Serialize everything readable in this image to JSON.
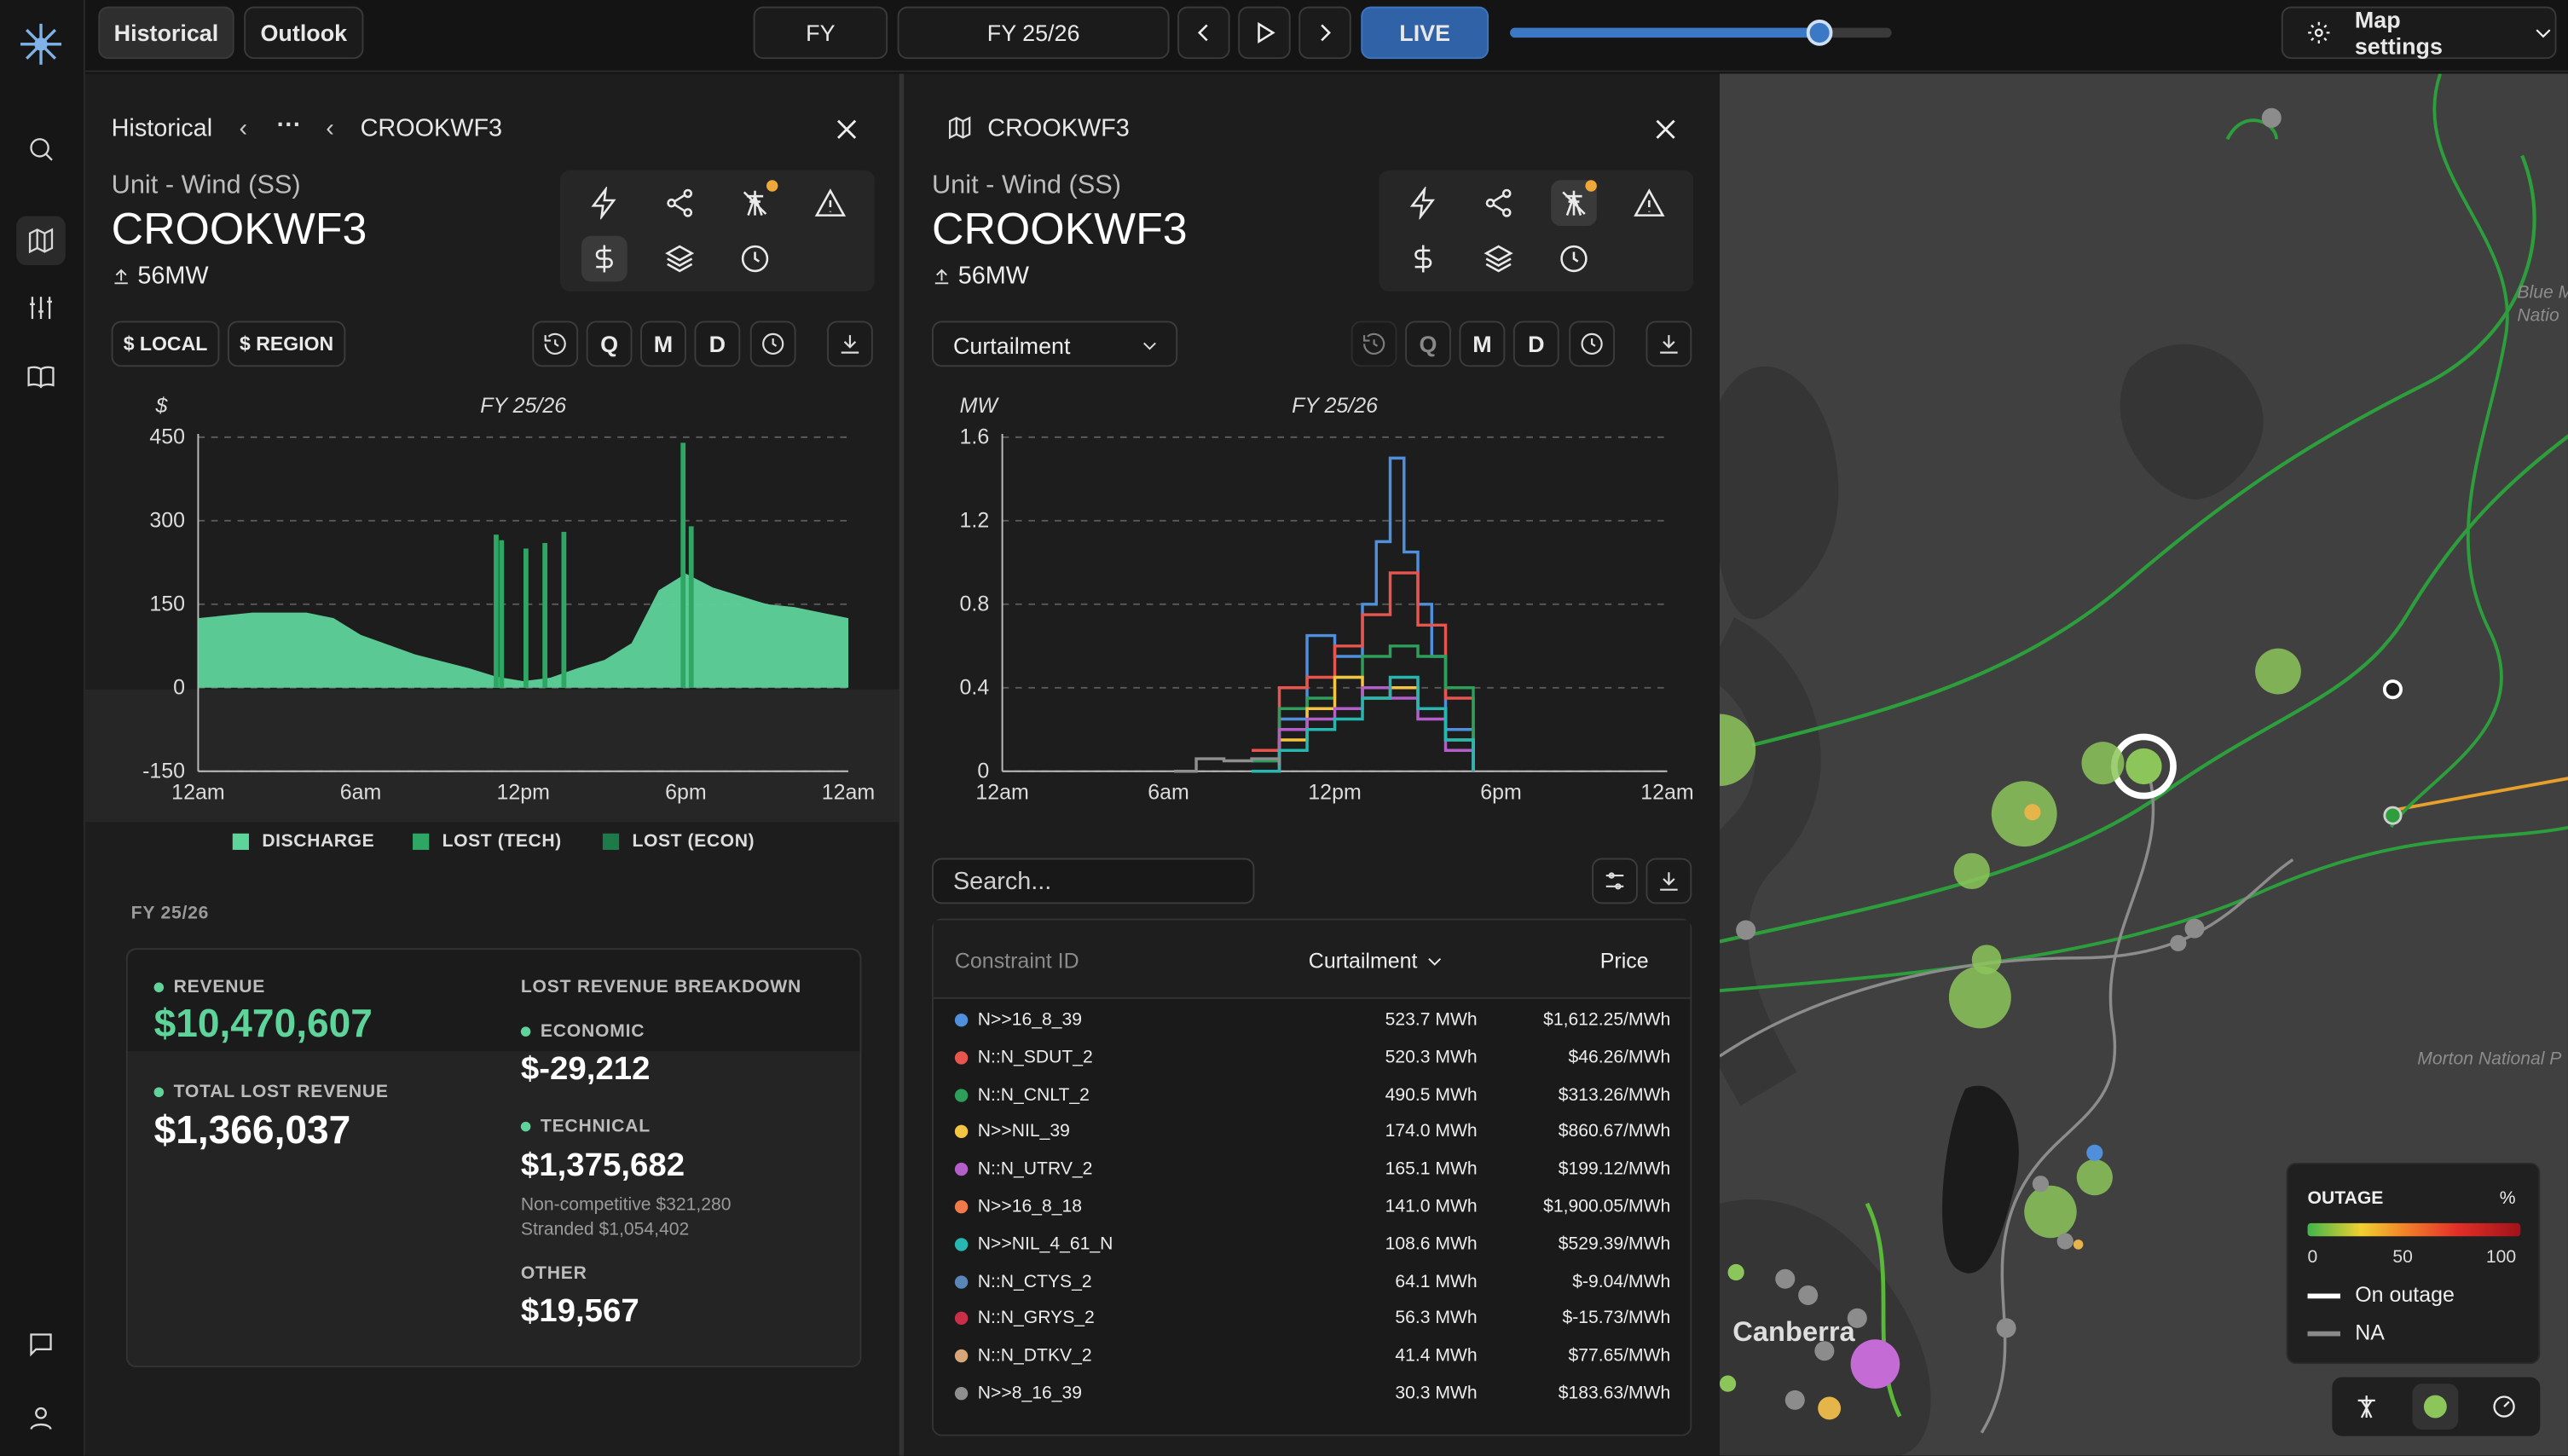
{
  "topbar": {
    "tabs": [
      "Historical",
      "Outlook"
    ],
    "period_type": "FY",
    "period_value": "FY 25/26",
    "live_label": "LIVE",
    "timeline_position": 0.81,
    "map_settings_label": "Map settings"
  },
  "left_panel": {
    "breadcrumb_root": "Historical",
    "breadcrumb_ellipsis": "···",
    "breadcrumb_current": "CROOKWF3",
    "unit_type": "Unit - Wind (SS)",
    "unit_name": "CROOKWF3",
    "capacity": "56MW",
    "btn_local": "$ LOCAL",
    "btn_region": "$ REGION",
    "btn_q": "Q",
    "btn_m": "M",
    "btn_d": "D",
    "chart_title": "FY 25/26",
    "chart_unit": "$",
    "legend": [
      "DISCHARGE",
      "LOST (TECH)",
      "LOST (ECON)"
    ],
    "summary_period": "FY 25/26",
    "revenue_label": "REVENUE",
    "revenue_value": "$10,470,607",
    "total_lost_label": "TOTAL LOST REVENUE",
    "total_lost_value": "$1,366,037",
    "breakdown_label": "LOST REVENUE BREAKDOWN",
    "economic_label": "ECONOMIC",
    "economic_value": "$-29,212",
    "technical_label": "TECHNICAL",
    "technical_value": "$1,375,682",
    "noncompetitive": "Non-competitive $321,280",
    "stranded": "Stranded $1,054,402",
    "other_label": "OTHER",
    "other_value": "$19,567"
  },
  "right_panel": {
    "title": "CROOKWF3",
    "unit_type": "Unit - Wind (SS)",
    "unit_name": "CROOKWF3",
    "capacity": "56MW",
    "dropdown_value": "Curtailment",
    "btn_q": "Q",
    "btn_m": "M",
    "btn_d": "D",
    "chart_title": "FY 25/26",
    "chart_unit": "MW",
    "search_placeholder": "Search...",
    "table_headers": [
      "Constraint ID",
      "Curtailment",
      "Price"
    ],
    "rows": [
      {
        "id": "N>>16_8_39",
        "curtailment": "523.7 MWh",
        "price": "$1,612.25/MWh",
        "color": "#4f8fdc"
      },
      {
        "id": "N::N_SDUT_2",
        "curtailment": "520.3 MWh",
        "price": "$46.26/MWh",
        "color": "#e8554e"
      },
      {
        "id": "N::N_CNLT_2",
        "curtailment": "490.5 MWh",
        "price": "$313.26/MWh",
        "color": "#2e9e5b"
      },
      {
        "id": "N>>NIL_39",
        "curtailment": "174.0 MWh",
        "price": "$860.67/MWh",
        "color": "#f4c542"
      },
      {
        "id": "N::N_UTRV_2",
        "curtailment": "165.1 MWh",
        "price": "$199.12/MWh",
        "color": "#b35ec9"
      },
      {
        "id": "N>>16_8_18",
        "curtailment": "141.0 MWh",
        "price": "$1,900.05/MWh",
        "color": "#f07a4a"
      },
      {
        "id": "N>>NIL_4_61_N",
        "curtailment": "108.6 MWh",
        "price": "$529.39/MWh",
        "color": "#27b6b0"
      },
      {
        "id": "N::N_CTYS_2",
        "curtailment": "64.1 MWh",
        "price": "$-9.04/MWh",
        "color": "#5a85b8"
      },
      {
        "id": "N::N_GRYS_2",
        "curtailment": "56.3 MWh",
        "price": "$-15.73/MWh",
        "color": "#c93048"
      },
      {
        "id": "N::N_DTKV_2",
        "curtailment": "41.4 MWh",
        "price": "$77.65/MWh",
        "color": "#d7a77a"
      },
      {
        "id": "N>>8_16_39",
        "curtailment": "30.3 MWh",
        "price": "$183.63/MWh",
        "color": "#8f8f8f"
      }
    ]
  },
  "map": {
    "city_label": "Canberra",
    "label_blue": "Blue M Natio",
    "label_morton": "Morton National P",
    "legend_title": "OUTAGE",
    "legend_unit": "%",
    "legend_ticks": [
      "0",
      "50",
      "100"
    ],
    "legend_on_outage": "On outage",
    "legend_na": "NA"
  },
  "chart_data": [
    {
      "type": "area",
      "title": "FY 25/26",
      "ylabel": "$",
      "x_ticks": [
        "12am",
        "6am",
        "12pm",
        "6pm",
        "12am"
      ],
      "y_ticks": [
        -150,
        0,
        150,
        300,
        450
      ],
      "ylim": [
        -150,
        450
      ],
      "grid": true,
      "series": [
        {
          "name": "DISCHARGE",
          "color": "#5ed39a",
          "x": [
            0,
            2,
            4,
            5,
            6,
            8,
            10,
            11,
            12,
            13,
            14,
            15,
            16,
            17,
            18,
            19,
            20,
            21,
            22,
            23,
            24
          ],
          "values": [
            125,
            135,
            135,
            125,
            95,
            60,
            35,
            20,
            12,
            18,
            35,
            50,
            80,
            175,
            205,
            180,
            165,
            150,
            145,
            135,
            125
          ]
        },
        {
          "name": "LOST (TECH)",
          "color": "#2ea765"
        },
        {
          "name": "LOST (ECON)",
          "color": "#1f7a4a"
        }
      ],
      "spikes": [
        {
          "x": 11.0,
          "value": 275
        },
        {
          "x": 11.2,
          "value": 265
        },
        {
          "x": 12.1,
          "value": 250
        },
        {
          "x": 12.8,
          "value": 260
        },
        {
          "x": 13.5,
          "value": 280
        },
        {
          "x": 17.9,
          "value": 440
        },
        {
          "x": 18.2,
          "value": 290
        }
      ]
    },
    {
      "type": "line",
      "title": "FY 25/26",
      "ylabel": "MW",
      "x_ticks": [
        "12am",
        "6am",
        "12pm",
        "6pm",
        "12am"
      ],
      "y_ticks": [
        0,
        0.4,
        0.8,
        1.2,
        1.6
      ],
      "ylim": [
        0,
        1.6
      ],
      "grid": true,
      "series": [
        {
          "name": "N>>16_8_39",
          "color": "#4f8fdc",
          "x": [
            9,
            10,
            11,
            12,
            13,
            13.5,
            14,
            14.5,
            15,
            15.5,
            16,
            17
          ],
          "values": [
            0.05,
            0.25,
            0.65,
            0.55,
            0.8,
            1.1,
            1.5,
            1.05,
            0.8,
            0.55,
            0.2,
            0.0
          ]
        },
        {
          "name": "N::N_SDUT_2",
          "color": "#e8554e",
          "x": [
            9,
            10,
            11,
            12,
            13,
            14,
            15,
            16,
            17
          ],
          "values": [
            0.1,
            0.4,
            0.45,
            0.6,
            0.75,
            0.95,
            0.7,
            0.35,
            0.0
          ]
        },
        {
          "name": "N::N_CNLT_2",
          "color": "#2e9e5b",
          "x": [
            9,
            10,
            11,
            12,
            13,
            14,
            15,
            16,
            17
          ],
          "values": [
            0.05,
            0.3,
            0.35,
            0.45,
            0.55,
            0.6,
            0.55,
            0.4,
            0.0
          ]
        },
        {
          "name": "N>>NIL_39",
          "color": "#f4c542",
          "x": [
            9,
            10,
            11,
            12,
            13,
            14,
            15,
            16,
            17
          ],
          "values": [
            0.0,
            0.15,
            0.3,
            0.45,
            0.35,
            0.4,
            0.3,
            0.15,
            0.0
          ]
        },
        {
          "name": "N::N_UTRV_2",
          "color": "#b35ec9",
          "x": [
            9,
            10,
            11,
            12,
            13,
            14,
            15,
            16,
            17
          ],
          "values": [
            0.0,
            0.2,
            0.25,
            0.3,
            0.4,
            0.35,
            0.25,
            0.1,
            0.0
          ]
        },
        {
          "name": "N>>NIL_4_61_N",
          "color": "#27b6b0",
          "x": [
            9,
            10,
            11,
            12,
            13,
            14,
            15,
            16,
            17
          ],
          "values": [
            0.0,
            0.1,
            0.2,
            0.25,
            0.35,
            0.45,
            0.3,
            0.15,
            0.0
          ]
        },
        {
          "name": "N>>8_16_39",
          "color": "#8f8f8f",
          "x": [
            6.2,
            7,
            8,
            9,
            10
          ],
          "values": [
            0.0,
            0.06,
            0.05,
            0.06,
            0.03
          ]
        }
      ]
    }
  ]
}
